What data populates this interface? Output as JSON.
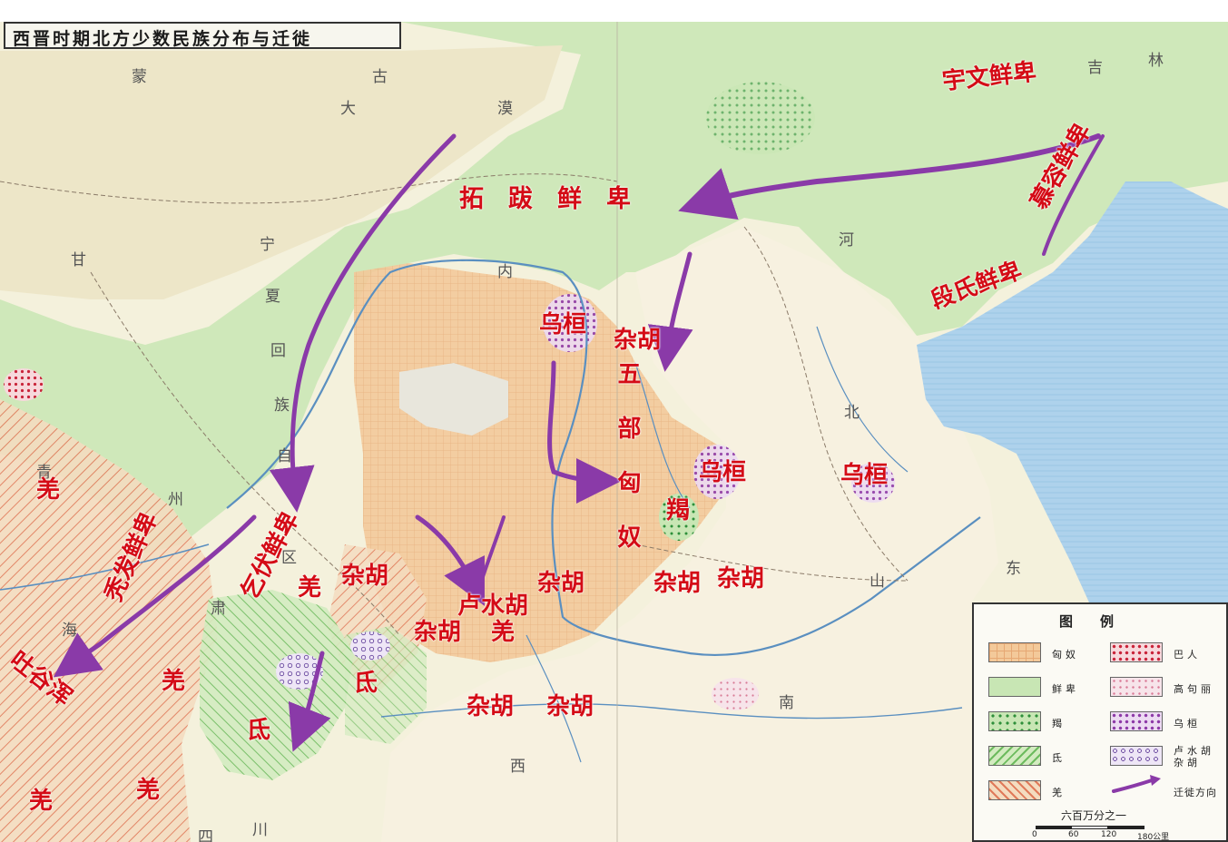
{
  "title": "西晋时期北方少数民族分布与迁徙",
  "peoples": [
    {
      "id": "yuwen",
      "text": "宇文鲜卑"
    },
    {
      "id": "tuoba",
      "text": "拓　跋　鲜　卑"
    },
    {
      "id": "murong",
      "text": "慕容鲜卑"
    },
    {
      "id": "duan",
      "text": "段氏鲜卑"
    },
    {
      "id": "wuhuan1",
      "text": "乌桓"
    },
    {
      "id": "wuhuan2",
      "text": "乌桓"
    },
    {
      "id": "wuhuan3",
      "text": "乌桓"
    },
    {
      "id": "zahu1",
      "text": "杂胡"
    },
    {
      "id": "wubu",
      "text": "五部匈奴"
    },
    {
      "id": "jie",
      "text": "羯"
    },
    {
      "id": "zahu2",
      "text": "杂胡"
    },
    {
      "id": "zahu3",
      "text": "杂胡"
    },
    {
      "id": "zahu4",
      "text": "杂胡"
    },
    {
      "id": "zahu5",
      "text": "杂胡"
    },
    {
      "id": "zahu6",
      "text": "杂胡"
    },
    {
      "id": "zahu7",
      "text": "杂胡"
    },
    {
      "id": "zahu8",
      "text": "杂胡"
    },
    {
      "id": "lushuihu",
      "text": "卢水胡"
    },
    {
      "id": "qiang1",
      "text": "羌"
    },
    {
      "id": "qiang2",
      "text": "羌"
    },
    {
      "id": "qiang3",
      "text": "羌"
    },
    {
      "id": "qiang4",
      "text": "羌"
    },
    {
      "id": "qiang5",
      "text": "羌"
    },
    {
      "id": "qiang6",
      "text": "羌"
    },
    {
      "id": "di1",
      "text": "氐"
    },
    {
      "id": "di2",
      "text": "氐"
    },
    {
      "id": "qifu",
      "text": "乞伏鲜卑"
    },
    {
      "id": "tufa",
      "text": "秃发鲜卑"
    },
    {
      "id": "tuyuhun",
      "text": "吐谷浑"
    }
  ],
  "background_labels": [
    "蒙",
    "古",
    "大",
    "漠",
    "吉",
    "林",
    "宁",
    "夏",
    "回",
    "族",
    "自",
    "区",
    "甘",
    "肃",
    "青",
    "海",
    "内",
    "河",
    "北",
    "山",
    "西",
    "东",
    "南",
    "川",
    "四",
    "州"
  ],
  "legend": {
    "title": "图例",
    "items": [
      {
        "label": "匈奴",
        "color": "#f3c99a",
        "pattern": "grid"
      },
      {
        "label": "鲜卑",
        "color": "#c8e6b4",
        "pattern": "plain"
      },
      {
        "label": "羯",
        "color": "#c8e6b4",
        "pattern": "dots-green"
      },
      {
        "label": "氐",
        "color": "#c8e6b4",
        "pattern": "hatch-green"
      },
      {
        "label": "羌",
        "color": "#f4dcc0",
        "pattern": "hatch-red"
      },
      {
        "label": "巴人",
        "color": "#f7d8dc",
        "pattern": "dots-red"
      },
      {
        "label": "高句丽",
        "color": "#f7e4ea",
        "pattern": "dots-pink"
      },
      {
        "label": "乌桓",
        "color": "#e8d4f0",
        "pattern": "dots-purple"
      },
      {
        "label": "卢水胡杂胡",
        "color": "#e8e0f4",
        "pattern": "circles"
      },
      {
        "label": "迁徙方向",
        "color": "#8a3aa8",
        "pattern": "arrow"
      }
    ],
    "scale_title": "六百万分之一",
    "scale_ticks": [
      "0",
      "60",
      "120",
      "180公里"
    ]
  },
  "colors": {
    "xiongnu": "#f3c99a",
    "xianbei": "#c8e6b4",
    "qiang": "#f4dcc0",
    "sea": "#aed2ec",
    "arrow": "#8a3aa8",
    "label": "#d40b16"
  }
}
